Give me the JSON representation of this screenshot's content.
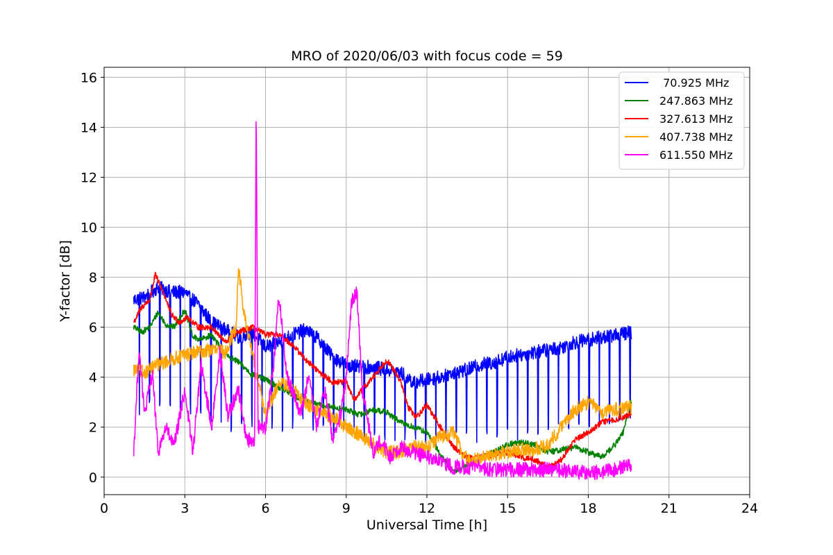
{
  "chart_data": {
    "type": "line",
    "title": "MRO of 2020/06/03 with focus code = 59",
    "xlabel": "Universal Time [h]",
    "ylabel": "Y-factor [dB]",
    "xlim": [
      0,
      24
    ],
    "ylim": [
      -0.7,
      16.4
    ],
    "xticks": [
      0,
      3,
      6,
      9,
      12,
      15,
      18,
      21,
      24
    ],
    "yticks": [
      0,
      2,
      4,
      6,
      8,
      10,
      12,
      14,
      16
    ],
    "grid": true,
    "legend_position": "top-right",
    "series": [
      {
        "name": " 70.925 MHz",
        "color": "#0000ff",
        "noise": 0.28,
        "dips": {
          "start": 1.3,
          "period": 0.38,
          "depth_frac": 0.62
        },
        "points": [
          [
            1.1,
            7.1
          ],
          [
            1.5,
            7.2
          ],
          [
            2.0,
            7.6
          ],
          [
            2.5,
            7.4
          ],
          [
            3.0,
            7.4
          ],
          [
            3.5,
            6.9
          ],
          [
            4.0,
            6.2
          ],
          [
            4.5,
            5.9
          ],
          [
            5.0,
            5.6
          ],
          [
            5.5,
            5.8
          ],
          [
            6.0,
            5.2
          ],
          [
            6.5,
            5.4
          ],
          [
            7.0,
            5.7
          ],
          [
            7.5,
            5.9
          ],
          [
            8.0,
            5.5
          ],
          [
            8.5,
            4.8
          ],
          [
            9.0,
            4.5
          ],
          [
            9.5,
            4.4
          ],
          [
            10.0,
            4.4
          ],
          [
            10.5,
            4.3
          ],
          [
            11.0,
            4.2
          ],
          [
            11.5,
            3.8
          ],
          [
            12.0,
            3.9
          ],
          [
            12.5,
            4.0
          ],
          [
            13.0,
            4.2
          ],
          [
            13.5,
            4.3
          ],
          [
            14.0,
            4.5
          ],
          [
            14.5,
            4.6
          ],
          [
            15.0,
            4.8
          ],
          [
            15.5,
            4.9
          ],
          [
            16.0,
            5.0
          ],
          [
            16.5,
            5.1
          ],
          [
            17.0,
            5.2
          ],
          [
            17.5,
            5.4
          ],
          [
            18.0,
            5.5
          ],
          [
            18.5,
            5.6
          ],
          [
            19.0,
            5.7
          ],
          [
            19.6,
            5.8
          ]
        ]
      },
      {
        "name": "247.863 MHz",
        "color": "#008000",
        "noise": 0.12,
        "points": [
          [
            1.1,
            6.0
          ],
          [
            1.4,
            5.8
          ],
          [
            1.7,
            6.0
          ],
          [
            2.0,
            6.6
          ],
          [
            2.3,
            6.1
          ],
          [
            2.6,
            6.0
          ],
          [
            3.0,
            6.7
          ],
          [
            3.3,
            5.6
          ],
          [
            3.6,
            5.5
          ],
          [
            4.0,
            5.7
          ],
          [
            4.5,
            4.9
          ],
          [
            5.0,
            4.6
          ],
          [
            5.5,
            4.1
          ],
          [
            6.0,
            3.9
          ],
          [
            6.5,
            3.6
          ],
          [
            7.0,
            3.3
          ],
          [
            7.5,
            3.0
          ],
          [
            8.0,
            2.9
          ],
          [
            8.5,
            2.8
          ],
          [
            9.0,
            2.7
          ],
          [
            9.5,
            2.5
          ],
          [
            10.0,
            2.7
          ],
          [
            10.5,
            2.6
          ],
          [
            11.0,
            2.2
          ],
          [
            11.5,
            2.0
          ],
          [
            12.0,
            1.8
          ],
          [
            12.5,
            0.9
          ],
          [
            13.0,
            0.2
          ],
          [
            13.5,
            0.5
          ],
          [
            14.0,
            0.8
          ],
          [
            14.5,
            1.0
          ],
          [
            15.0,
            1.3
          ],
          [
            15.5,
            1.4
          ],
          [
            16.0,
            1.3
          ],
          [
            16.5,
            1.0
          ],
          [
            17.0,
            1.1
          ],
          [
            17.5,
            1.2
          ],
          [
            18.0,
            1.0
          ],
          [
            18.5,
            0.8
          ],
          [
            19.0,
            1.3
          ],
          [
            19.3,
            1.8
          ],
          [
            19.6,
            3.1
          ]
        ]
      },
      {
        "name": "327.613 MHz",
        "color": "#ff0000",
        "noise": 0.12,
        "points": [
          [
            1.1,
            6.2
          ],
          [
            1.4,
            6.8
          ],
          [
            1.7,
            7.1
          ],
          [
            1.9,
            8.1
          ],
          [
            2.2,
            7.4
          ],
          [
            2.5,
            6.5
          ],
          [
            2.8,
            6.2
          ],
          [
            3.1,
            6.4
          ],
          [
            3.5,
            6.0
          ],
          [
            4.0,
            6.0
          ],
          [
            4.5,
            5.4
          ],
          [
            5.0,
            5.8
          ],
          [
            5.5,
            6.0
          ],
          [
            6.0,
            5.7
          ],
          [
            6.5,
            5.7
          ],
          [
            7.0,
            5.3
          ],
          [
            7.5,
            4.7
          ],
          [
            8.0,
            4.2
          ],
          [
            8.5,
            3.8
          ],
          [
            9.0,
            3.8
          ],
          [
            9.3,
            3.1
          ],
          [
            9.6,
            3.5
          ],
          [
            10.0,
            4.0
          ],
          [
            10.5,
            4.7
          ],
          [
            11.0,
            3.9
          ],
          [
            11.3,
            2.8
          ],
          [
            11.6,
            2.4
          ],
          [
            12.0,
            2.9
          ],
          [
            12.5,
            2.0
          ],
          [
            13.0,
            1.2
          ],
          [
            13.5,
            0.8
          ],
          [
            14.0,
            0.8
          ],
          [
            14.5,
            0.9
          ],
          [
            15.0,
            1.0
          ],
          [
            15.5,
            0.8
          ],
          [
            16.0,
            0.7
          ],
          [
            16.5,
            0.4
          ],
          [
            17.0,
            0.7
          ],
          [
            17.5,
            1.5
          ],
          [
            18.0,
            1.8
          ],
          [
            18.5,
            2.2
          ],
          [
            19.0,
            2.3
          ],
          [
            19.6,
            2.5
          ]
        ]
      },
      {
        "name": "407.738 MHz",
        "color": "#ffa500",
        "noise": 0.28,
        "points": [
          [
            1.1,
            4.3
          ],
          [
            1.5,
            4.2
          ],
          [
            2.0,
            4.5
          ],
          [
            2.5,
            4.7
          ],
          [
            3.0,
            4.9
          ],
          [
            3.5,
            5.0
          ],
          [
            4.0,
            5.1
          ],
          [
            4.5,
            5.0
          ],
          [
            4.9,
            6.0
          ],
          [
            5.0,
            8.4
          ],
          [
            5.2,
            6.5
          ],
          [
            5.5,
            5.0
          ],
          [
            5.8,
            3.5
          ],
          [
            6.0,
            2.5
          ],
          [
            6.5,
            3.8
          ],
          [
            7.0,
            3.5
          ],
          [
            7.5,
            3.0
          ],
          [
            8.0,
            2.6
          ],
          [
            8.5,
            2.4
          ],
          [
            9.0,
            2.0
          ],
          [
            9.5,
            1.7
          ],
          [
            10.0,
            1.3
          ],
          [
            10.5,
            1.0
          ],
          [
            11.0,
            1.0
          ],
          [
            11.5,
            1.2
          ],
          [
            12.0,
            1.2
          ],
          [
            12.5,
            1.6
          ],
          [
            13.0,
            1.8
          ],
          [
            13.3,
            1.0
          ],
          [
            13.6,
            0.6
          ],
          [
            14.0,
            0.8
          ],
          [
            14.5,
            0.9
          ],
          [
            15.0,
            1.0
          ],
          [
            15.5,
            1.1
          ],
          [
            16.0,
            1.1
          ],
          [
            16.5,
            1.3
          ],
          [
            17.0,
            2.0
          ],
          [
            17.5,
            2.7
          ],
          [
            18.0,
            3.0
          ],
          [
            18.5,
            2.6
          ],
          [
            19.0,
            2.7
          ],
          [
            19.6,
            2.8
          ]
        ]
      },
      {
        "name": "611.550 MHz",
        "color": "#ff00ff",
        "noise": 0.3,
        "points": [
          [
            1.1,
            1.0
          ],
          [
            1.3,
            5.2
          ],
          [
            1.5,
            2.5
          ],
          [
            1.8,
            4.2
          ],
          [
            2.0,
            1.0
          ],
          [
            2.3,
            2.0
          ],
          [
            2.6,
            1.2
          ],
          [
            3.0,
            3.5
          ],
          [
            3.3,
            1.0
          ],
          [
            3.6,
            4.5
          ],
          [
            4.0,
            2.0
          ],
          [
            4.3,
            5.0
          ],
          [
            4.6,
            2.5
          ],
          [
            5.0,
            3.5
          ],
          [
            5.3,
            1.5
          ],
          [
            5.6,
            1.5
          ],
          [
            5.65,
            15.5
          ],
          [
            5.72,
            2.0
          ],
          [
            6.0,
            2.0
          ],
          [
            6.3,
            4.5
          ],
          [
            6.5,
            7.3
          ],
          [
            6.8,
            4.0
          ],
          [
            7.0,
            3.5
          ],
          [
            7.3,
            2.5
          ],
          [
            7.6,
            4.0
          ],
          [
            7.9,
            2.0
          ],
          [
            8.2,
            3.5
          ],
          [
            8.5,
            1.5
          ],
          [
            8.8,
            2.5
          ],
          [
            9.0,
            4.0
          ],
          [
            9.2,
            7.0
          ],
          [
            9.4,
            7.5
          ],
          [
            9.6,
            3.5
          ],
          [
            10.0,
            1.0
          ],
          [
            10.3,
            1.5
          ],
          [
            10.6,
            0.8
          ],
          [
            11.0,
            1.2
          ],
          [
            11.5,
            1.0
          ],
          [
            12.0,
            0.8
          ],
          [
            12.5,
            0.6
          ],
          [
            13.0,
            0.4
          ],
          [
            13.5,
            0.4
          ],
          [
            14.0,
            0.4
          ],
          [
            14.5,
            0.3
          ],
          [
            15.0,
            0.3
          ],
          [
            15.5,
            0.3
          ],
          [
            16.0,
            0.3
          ],
          [
            16.5,
            0.3
          ],
          [
            17.0,
            0.3
          ],
          [
            17.5,
            0.2
          ],
          [
            18.0,
            0.2
          ],
          [
            18.5,
            0.2
          ],
          [
            19.0,
            0.3
          ],
          [
            19.6,
            0.5
          ]
        ]
      }
    ]
  }
}
